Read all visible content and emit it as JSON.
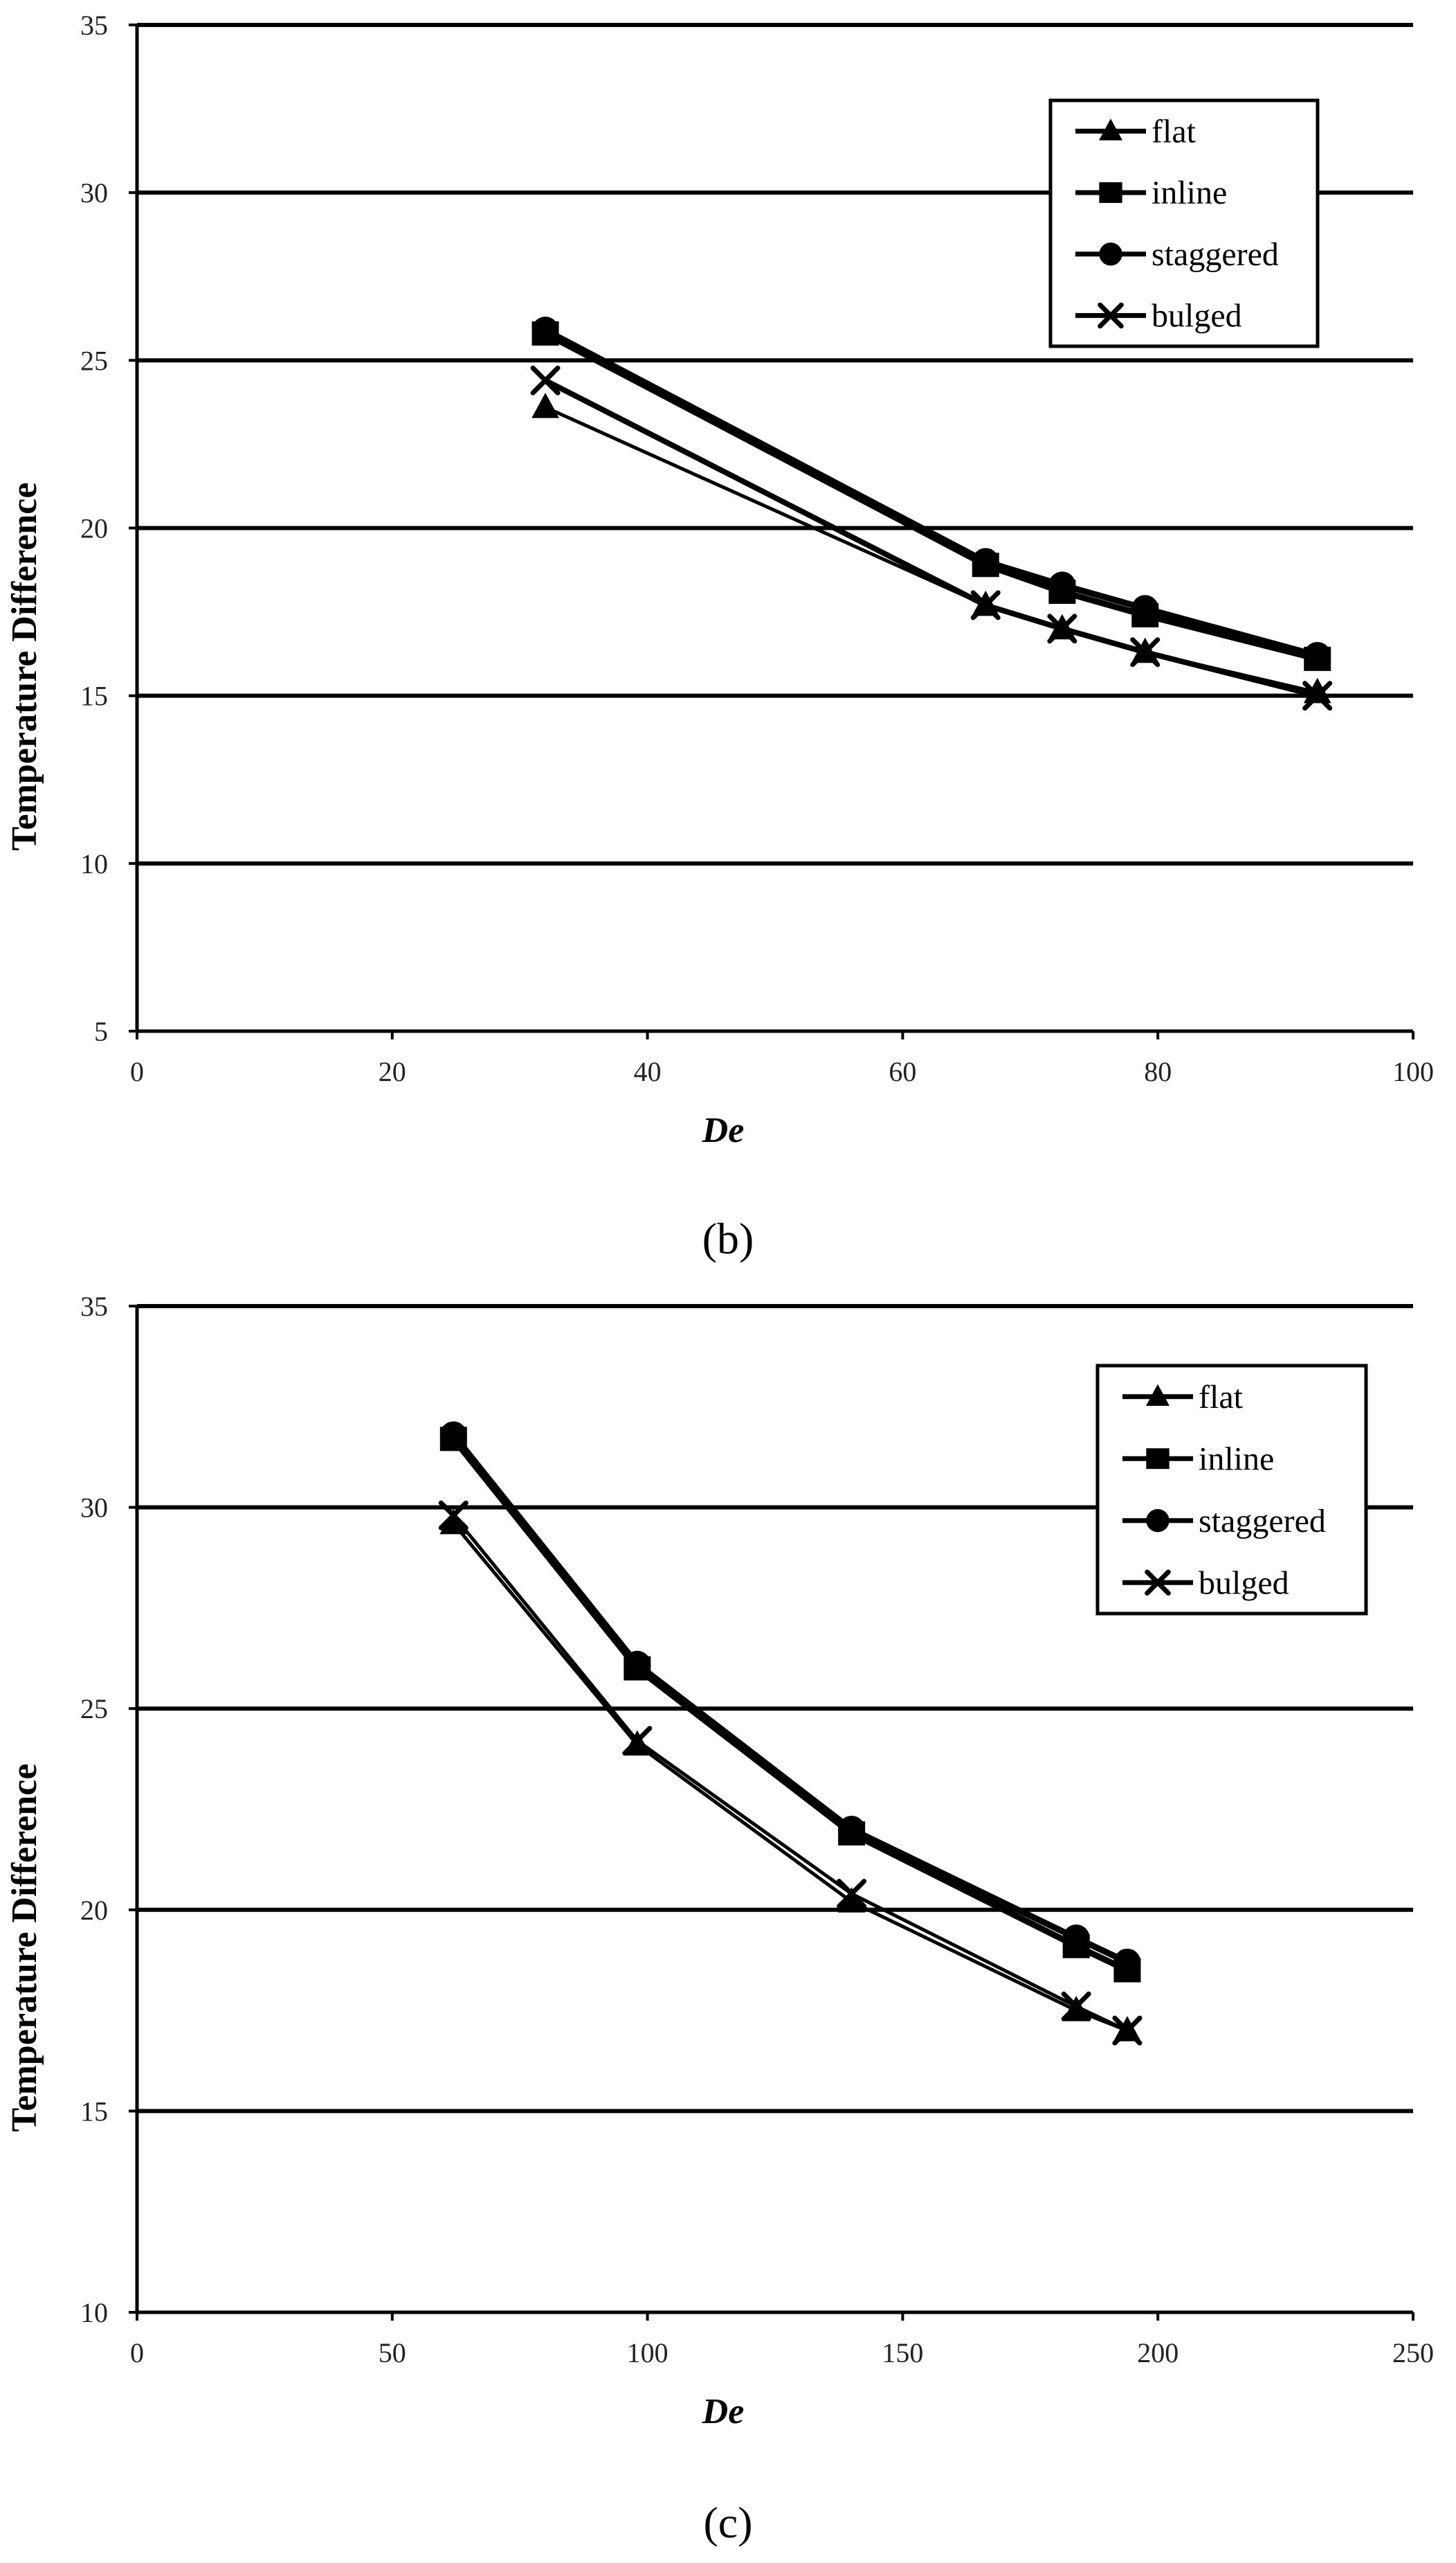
{
  "chart_data": [
    {
      "type": "line",
      "panel_label": "(b)",
      "title": "",
      "xlabel": "De",
      "ylabel": "Temperature Difference",
      "xlim": [
        0,
        100
      ],
      "ylim": [
        5,
        35
      ],
      "xticks": [
        0,
        20,
        40,
        60,
        80,
        100
      ],
      "yticks": [
        5,
        10,
        15,
        20,
        25,
        30,
        35
      ],
      "grid": "horizontal",
      "legend_position": "top-right",
      "series": [
        {
          "name": "flat",
          "marker": "triangle",
          "x": [
            32,
            66.5,
            72.5,
            79,
            92.5
          ],
          "y": [
            23.6,
            17.7,
            17.0,
            16.3,
            15.1
          ]
        },
        {
          "name": "inline",
          "marker": "square",
          "x": [
            32,
            66.5,
            72.5,
            79,
            92.5
          ],
          "y": [
            25.8,
            18.9,
            18.1,
            17.4,
            16.1
          ]
        },
        {
          "name": "staggered",
          "marker": "circle",
          "x": [
            32,
            66.5,
            72.5,
            79,
            92.5
          ],
          "y": [
            25.9,
            19.0,
            18.3,
            17.6,
            16.2
          ]
        },
        {
          "name": "bulged",
          "marker": "x",
          "x": [
            32,
            66.5,
            72.5,
            79,
            92.5
          ],
          "y": [
            24.4,
            17.7,
            17.0,
            16.3,
            15.0
          ]
        }
      ]
    },
    {
      "type": "line",
      "panel_label": "(c)",
      "title": "",
      "xlabel": "De",
      "ylabel": "Temperature Difference",
      "xlim": [
        0,
        250
      ],
      "ylim": [
        10,
        35
      ],
      "xticks": [
        0,
        50,
        100,
        150,
        200,
        250
      ],
      "yticks": [
        10,
        15,
        20,
        25,
        30,
        35
      ],
      "grid": "horizontal",
      "legend_position": "top-right",
      "series": [
        {
          "name": "flat",
          "marker": "triangle",
          "x": [
            62,
            98,
            140,
            184,
            194
          ],
          "y": [
            29.6,
            24.1,
            20.2,
            17.5,
            17.0
          ]
        },
        {
          "name": "inline",
          "marker": "square",
          "x": [
            62,
            98,
            140,
            184,
            194
          ],
          "y": [
            31.7,
            26.0,
            21.9,
            19.1,
            18.5
          ]
        },
        {
          "name": "staggered",
          "marker": "circle",
          "x": [
            62,
            98,
            140,
            184,
            194
          ],
          "y": [
            31.8,
            26.1,
            22.0,
            19.3,
            18.7
          ]
        },
        {
          "name": "bulged",
          "marker": "x",
          "x": [
            62,
            98,
            140,
            184,
            194
          ],
          "y": [
            29.8,
            24.2,
            20.4,
            17.6,
            17.0
          ]
        }
      ]
    }
  ]
}
